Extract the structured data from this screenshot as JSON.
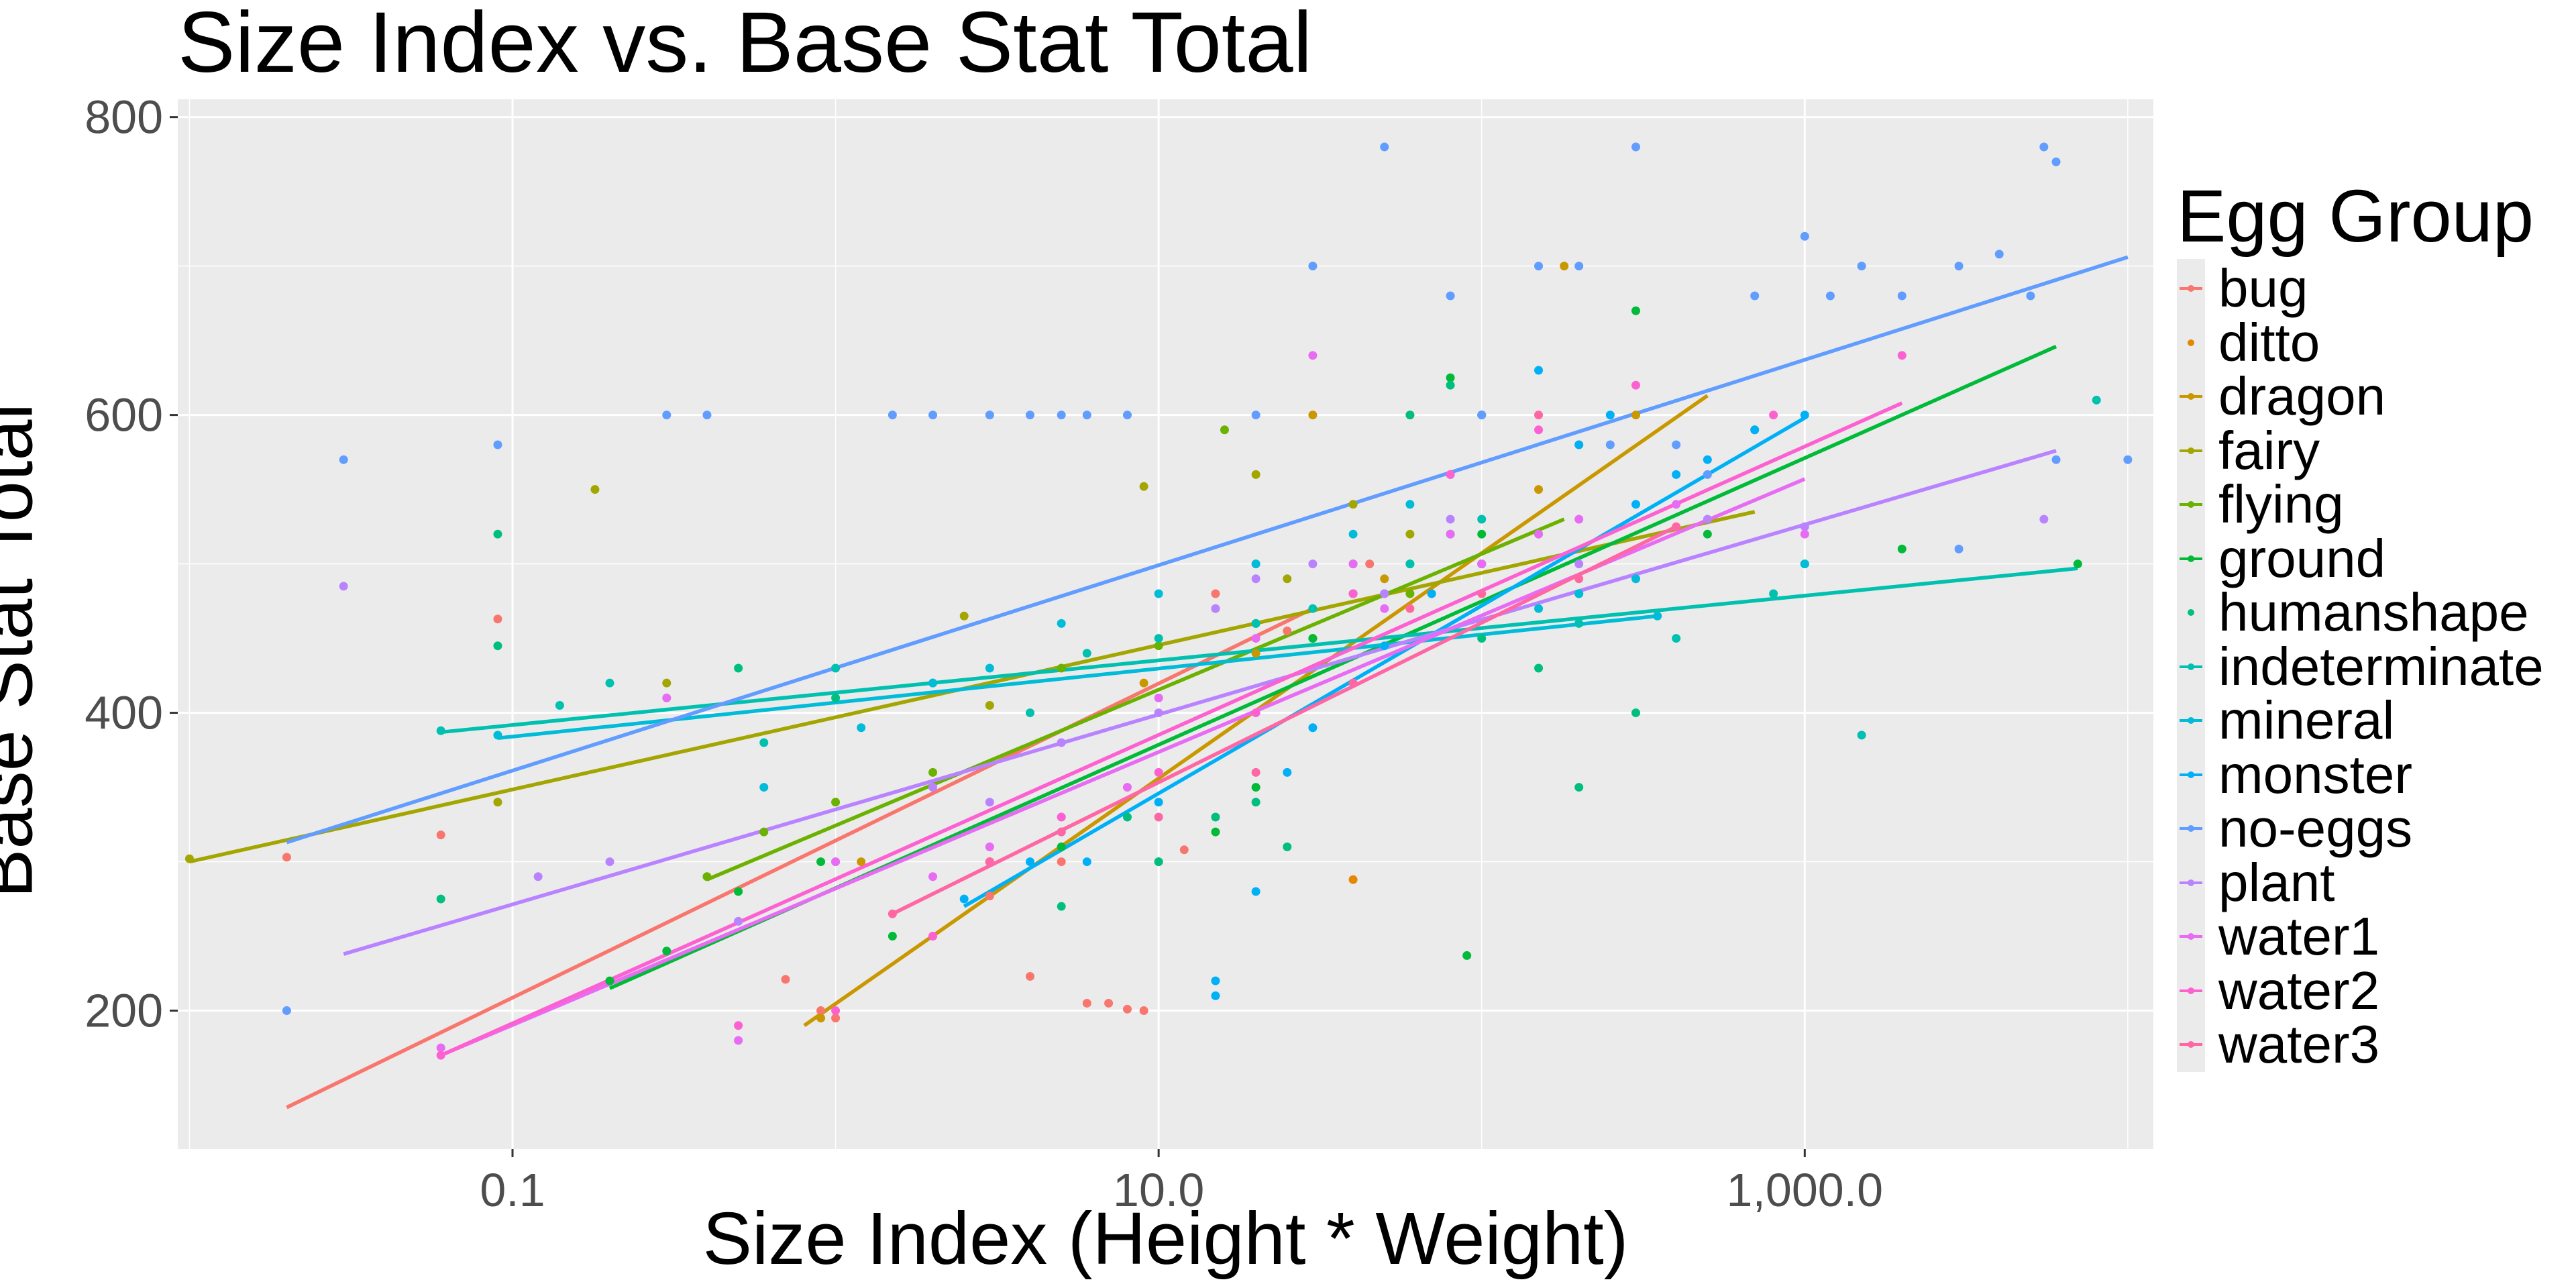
{
  "chart_data": {
    "type": "scatter",
    "title": "Size Index vs. Base Stat Total",
    "xlabel": "Size Index (Height * Weight)",
    "ylabel": "Base Stat Total",
    "x_scale": "log10",
    "xlim": [
      0.0092,
      12000
    ],
    "ylim": [
      107,
      812
    ],
    "x_ticks": [
      0.1,
      10,
      1000
    ],
    "x_tick_labels": [
      "0.1",
      "10.0",
      "1,000.0"
    ],
    "y_ticks": [
      200,
      400,
      600,
      800
    ],
    "y_tick_labels": [
      "200",
      "400",
      "600",
      "800"
    ],
    "grid": true,
    "legend_position": "right",
    "legend_title": "Egg Group",
    "series": [
      {
        "name": "bug",
        "color": "#F8766D",
        "fit": [
          [
            0.02,
            135
          ],
          [
            30,
            470
          ]
        ],
        "points": [
          [
            0.02,
            303
          ],
          [
            0.09,
            463
          ],
          [
            0.06,
            318
          ],
          [
            1.0,
            195
          ],
          [
            0.7,
            221
          ],
          [
            0.9,
            200
          ],
          [
            6,
            205
          ],
          [
            7,
            205
          ],
          [
            8,
            201
          ],
          [
            4,
            223
          ],
          [
            3,
            277
          ],
          [
            5,
            300
          ],
          [
            9,
            200
          ],
          [
            2,
            250
          ],
          [
            12,
            308
          ],
          [
            15,
            480
          ],
          [
            20,
            500
          ],
          [
            45,
            500
          ],
          [
            25,
            455
          ]
        ]
      },
      {
        "name": "ditto",
        "color": "#E58700",
        "fit": null,
        "points": [
          [
            40,
            288
          ]
        ]
      },
      {
        "name": "dragon",
        "color": "#C99800",
        "fit": [
          [
            0.8,
            190
          ],
          [
            500,
            613
          ]
        ],
        "points": [
          [
            0.9,
            195
          ],
          [
            1.2,
            300
          ],
          [
            9,
            420
          ],
          [
            30,
            600
          ],
          [
            60,
            600
          ],
          [
            100,
            600
          ],
          [
            150,
            550
          ],
          [
            180,
            700
          ],
          [
            200,
            580
          ],
          [
            300,
            600
          ],
          [
            20,
            440
          ],
          [
            50,
            490
          ]
        ]
      },
      {
        "name": "fairy",
        "color": "#A3A500",
        "fit": [
          [
            0.01,
            300
          ],
          [
            700,
            535
          ]
        ],
        "points": [
          [
            0.01,
            302
          ],
          [
            0.18,
            550
          ],
          [
            0.09,
            340
          ],
          [
            0.3,
            420
          ],
          [
            2.5,
            465
          ],
          [
            3,
            405
          ],
          [
            15,
            470
          ],
          [
            25,
            490
          ],
          [
            40,
            540
          ],
          [
            60,
            520
          ],
          [
            9,
            552
          ],
          [
            20,
            560
          ]
        ]
      },
      {
        "name": "flying",
        "color": "#6BB100",
        "fit": [
          [
            0.4,
            288
          ],
          [
            180,
            530
          ]
        ],
        "points": [
          [
            0.4,
            290
          ],
          [
            0.6,
            320
          ],
          [
            1.0,
            340
          ],
          [
            2,
            360
          ],
          [
            5,
            430
          ],
          [
            10,
            445
          ],
          [
            20,
            460
          ],
          [
            30,
            450
          ],
          [
            60,
            480
          ],
          [
            100,
            500
          ],
          [
            150,
            520
          ],
          [
            16,
            590
          ]
        ]
      },
      {
        "name": "ground",
        "color": "#00BA38",
        "fit": [
          [
            0.2,
            215
          ],
          [
            6000,
            646
          ]
        ],
        "points": [
          [
            0.2,
            220
          ],
          [
            0.3,
            240
          ],
          [
            0.5,
            280
          ],
          [
            0.9,
            300
          ],
          [
            1.5,
            250
          ],
          [
            3,
            300
          ],
          [
            5,
            310
          ],
          [
            10,
            300
          ],
          [
            15,
            320
          ],
          [
            20,
            350
          ],
          [
            30,
            450
          ],
          [
            40,
            480
          ],
          [
            60,
            500
          ],
          [
            90,
            237
          ],
          [
            100,
            520
          ],
          [
            200,
            480
          ],
          [
            300,
            670
          ],
          [
            500,
            520
          ],
          [
            700,
            590
          ],
          [
            1000,
            500
          ],
          [
            2000,
            510
          ],
          [
            7000,
            500
          ],
          [
            80,
            625
          ]
        ]
      },
      {
        "name": "humanshape",
        "color": "#00BF7D",
        "fit": null,
        "points": [
          [
            0.09,
            520
          ],
          [
            0.09,
            445
          ],
          [
            0.06,
            275
          ],
          [
            0.5,
            430
          ],
          [
            1.0,
            410
          ],
          [
            3,
            300
          ],
          [
            5,
            270
          ],
          [
            8,
            330
          ],
          [
            10,
            300
          ],
          [
            15,
            330
          ],
          [
            20,
            340
          ],
          [
            25,
            310
          ],
          [
            40,
            500
          ],
          [
            50,
            480
          ],
          [
            60,
            600
          ],
          [
            80,
            620
          ],
          [
            100,
            450
          ],
          [
            150,
            430
          ],
          [
            200,
            350
          ],
          [
            300,
            400
          ]
        ]
      },
      {
        "name": "indeterminate",
        "color": "#00C0AF",
        "fit": [
          [
            0.06,
            387
          ],
          [
            7000,
            497
          ]
        ],
        "points": [
          [
            0.06,
            388
          ],
          [
            0.14,
            405
          ],
          [
            0.2,
            420
          ],
          [
            0.6,
            380
          ],
          [
            1.0,
            430
          ],
          [
            2,
            420
          ],
          [
            4,
            400
          ],
          [
            6,
            440
          ],
          [
            10,
            450
          ],
          [
            20,
            460
          ],
          [
            30,
            470
          ],
          [
            40,
            480
          ],
          [
            60,
            500
          ],
          [
            80,
            520
          ],
          [
            100,
            530
          ],
          [
            200,
            460
          ],
          [
            400,
            450
          ],
          [
            800,
            480
          ],
          [
            1500,
            385
          ],
          [
            8000,
            610
          ]
        ]
      },
      {
        "name": "mineral",
        "color": "#00BCD8",
        "fit": [
          [
            0.09,
            383
          ],
          [
            350,
            465
          ]
        ],
        "points": [
          [
            0.09,
            385
          ],
          [
            0.6,
            350
          ],
          [
            1.2,
            390
          ],
          [
            2,
            420
          ],
          [
            3,
            430
          ],
          [
            5,
            460
          ],
          [
            10,
            480
          ],
          [
            20,
            500
          ],
          [
            40,
            520
          ],
          [
            60,
            540
          ],
          [
            80,
            560
          ],
          [
            100,
            600
          ],
          [
            150,
            470
          ],
          [
            200,
            480
          ],
          [
            300,
            490
          ],
          [
            350,
            465
          ],
          [
            1000,
            500
          ]
        ]
      },
      {
        "name": "monster",
        "color": "#00B0F6",
        "fit": [
          [
            2.5,
            270
          ],
          [
            1000,
            598
          ]
        ],
        "points": [
          [
            2.5,
            275
          ],
          [
            4,
            300
          ],
          [
            5,
            320
          ],
          [
            6,
            300
          ],
          [
            10,
            340
          ],
          [
            15,
            210
          ],
          [
            15,
            220
          ],
          [
            20,
            280
          ],
          [
            25,
            360
          ],
          [
            30,
            390
          ],
          [
            40,
            420
          ],
          [
            50,
            445
          ],
          [
            70,
            480
          ],
          [
            100,
            500
          ],
          [
            150,
            630
          ],
          [
            200,
            580
          ],
          [
            250,
            600
          ],
          [
            300,
            540
          ],
          [
            400,
            560
          ],
          [
            500,
            570
          ],
          [
            700,
            590
          ],
          [
            1000,
            600
          ]
        ]
      },
      {
        "name": "no-eggs",
        "color": "#619CFF",
        "fit": [
          [
            0.02,
            313
          ],
          [
            10000,
            706
          ]
        ],
        "points": [
          [
            0.02,
            200
          ],
          [
            0.03,
            570
          ],
          [
            0.09,
            580
          ],
          [
            0.3,
            600
          ],
          [
            0.4,
            600
          ],
          [
            1.5,
            600
          ],
          [
            2,
            600
          ],
          [
            3,
            600
          ],
          [
            4,
            600
          ],
          [
            5,
            600
          ],
          [
            6,
            600
          ],
          [
            8,
            600
          ],
          [
            20,
            600
          ],
          [
            30,
            700
          ],
          [
            50,
            780
          ],
          [
            80,
            680
          ],
          [
            100,
            600
          ],
          [
            150,
            700
          ],
          [
            200,
            700
          ],
          [
            250,
            580
          ],
          [
            300,
            780
          ],
          [
            400,
            580
          ],
          [
            500,
            560
          ],
          [
            700,
            680
          ],
          [
            1000,
            720
          ],
          [
            1200,
            680
          ],
          [
            1500,
            700
          ],
          [
            2000,
            680
          ],
          [
            3000,
            700
          ],
          [
            4000,
            708
          ],
          [
            5000,
            680
          ],
          [
            5500,
            780
          ],
          [
            6000,
            770
          ],
          [
            10000,
            570
          ],
          [
            6000,
            570
          ],
          [
            3000,
            510
          ]
        ]
      },
      {
        "name": "plant",
        "color": "#B983FF",
        "fit": [
          [
            0.03,
            238
          ],
          [
            6000,
            576
          ]
        ],
        "points": [
          [
            0.03,
            485
          ],
          [
            0.12,
            290
          ],
          [
            0.2,
            300
          ],
          [
            0.5,
            260
          ],
          [
            1,
            300
          ],
          [
            2,
            350
          ],
          [
            3,
            340
          ],
          [
            5,
            380
          ],
          [
            10,
            400
          ],
          [
            15,
            470
          ],
          [
            20,
            490
          ],
          [
            30,
            500
          ],
          [
            50,
            480
          ],
          [
            80,
            530
          ],
          [
            100,
            500
          ],
          [
            200,
            500
          ],
          [
            500,
            530
          ],
          [
            1000,
            525
          ],
          [
            5500,
            530
          ]
        ]
      },
      {
        "name": "water1",
        "color": "#E76BF3",
        "fit": [
          [
            0.06,
            170
          ],
          [
            1000,
            557
          ]
        ],
        "points": [
          [
            0.06,
            175
          ],
          [
            0.3,
            410
          ],
          [
            0.5,
            180
          ],
          [
            1.0,
            300
          ],
          [
            2,
            290
          ],
          [
            3,
            310
          ],
          [
            5,
            330
          ],
          [
            8,
            350
          ],
          [
            10,
            410
          ],
          [
            20,
            450
          ],
          [
            30,
            640
          ],
          [
            40,
            500
          ],
          [
            50,
            470
          ],
          [
            80,
            520
          ],
          [
            100,
            500
          ],
          [
            150,
            520
          ],
          [
            200,
            530
          ],
          [
            400,
            540
          ],
          [
            1000,
            520
          ]
        ]
      },
      {
        "name": "water2",
        "color": "#FD61D1",
        "fit": [
          [
            0.06,
            170
          ],
          [
            2000,
            608
          ]
        ],
        "points": [
          [
            0.06,
            170
          ],
          [
            0.5,
            190
          ],
          [
            1.0,
            200
          ],
          [
            2,
            250
          ],
          [
            3,
            300
          ],
          [
            5,
            330
          ],
          [
            10,
            360
          ],
          [
            20,
            400
          ],
          [
            40,
            480
          ],
          [
            80,
            560
          ],
          [
            150,
            590
          ],
          [
            300,
            620
          ],
          [
            800,
            600
          ],
          [
            2000,
            640
          ]
        ]
      },
      {
        "name": "water3",
        "color": "#FF67A4",
        "fit": [
          [
            1.5,
            265
          ],
          [
            400,
            525
          ]
        ],
        "points": [
          [
            1.5,
            265
          ],
          [
            3,
            300
          ],
          [
            5,
            320
          ],
          [
            10,
            330
          ],
          [
            20,
            360
          ],
          [
            40,
            420
          ],
          [
            60,
            470
          ],
          [
            100,
            480
          ],
          [
            200,
            490
          ],
          [
            400,
            525
          ],
          [
            150,
            600
          ]
        ]
      }
    ]
  }
}
